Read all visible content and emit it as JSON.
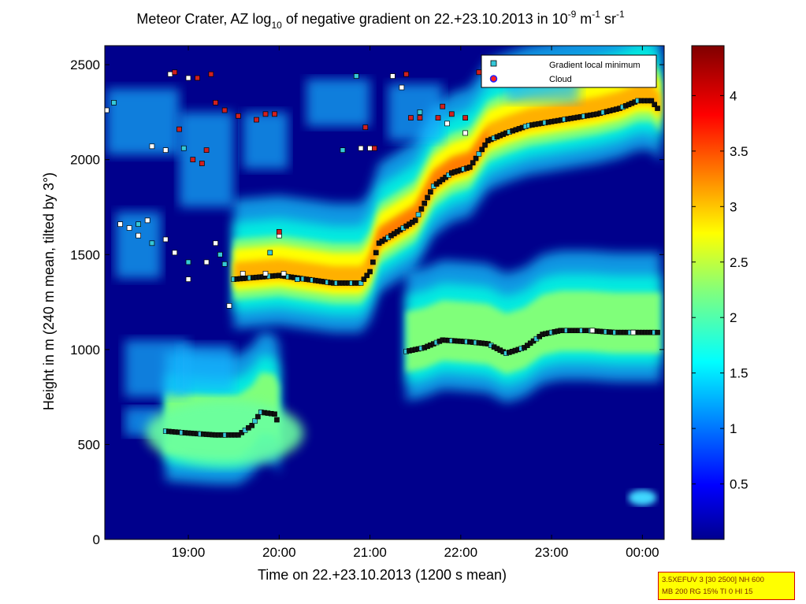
{
  "chart_data": {
    "type": "heatmap",
    "title": {
      "t1": "Meteor Crater, AZ log",
      "sub10": "10",
      "t2": " of negative gradient on 22.+23.10.2013 in 10",
      "supneg9": "-9",
      "t3": " m",
      "supneg1a": "-1",
      "t4": " sr",
      "supneg1b": "-1"
    },
    "xlabel": "Time on 22.+23.10.2013 (1200 s mean)",
    "ylabel": "Height in m (240 m mean, tilted by 3°)",
    "x_unit": "hours (24 = 00:00 on 23.10.2013)",
    "xlim": [
      18.08,
      24.24
    ],
    "ylim": [
      0,
      2600
    ],
    "xticks": [
      {
        "v": 19,
        "label": "19:00"
      },
      {
        "v": 20,
        "label": "20:00"
      },
      {
        "v": 21,
        "label": "21:00"
      },
      {
        "v": 22,
        "label": "22:00"
      },
      {
        "v": 23,
        "label": "23:00"
      },
      {
        "v": 24,
        "label": "00:00"
      }
    ],
    "yticks": [
      {
        "v": 0,
        "label": "0"
      },
      {
        "v": 500,
        "label": "500"
      },
      {
        "v": 1000,
        "label": "1000"
      },
      {
        "v": 1500,
        "label": "1500"
      },
      {
        "v": 2000,
        "label": "2000"
      },
      {
        "v": 2500,
        "label": "2500"
      }
    ],
    "colorbar": {
      "range": [
        0,
        4.45
      ],
      "colormap": "jet",
      "ticks": [
        {
          "v": 0.5,
          "label": "0.5"
        },
        {
          "v": 1,
          "label": "1"
        },
        {
          "v": 1.5,
          "label": "1.5"
        },
        {
          "v": 2,
          "label": "2"
        },
        {
          "v": 2.5,
          "label": "2.5"
        },
        {
          "v": 3,
          "label": "3"
        },
        {
          "v": 3.5,
          "label": "3.5"
        },
        {
          "v": 4,
          "label": "4"
        }
      ]
    },
    "legend": {
      "placement": "top-right",
      "entries": [
        {
          "label": "Gradient local minimum",
          "marker": "square",
          "color": "#35c8d8"
        },
        {
          "label": "Cloud",
          "marker": "circle",
          "color": "#ff2020",
          "edge": "#2020ff"
        }
      ]
    },
    "gradient_layers": [
      {
        "name": "upper layer",
        "points": [
          [
            19.5,
            1370
          ],
          [
            19.75,
            1380
          ],
          [
            20.0,
            1390
          ],
          [
            20.3,
            1370
          ],
          [
            20.6,
            1350
          ],
          [
            20.9,
            1350
          ],
          [
            21.0,
            1410
          ],
          [
            21.1,
            1560
          ],
          [
            21.3,
            1620
          ],
          [
            21.5,
            1680
          ],
          [
            21.7,
            1860
          ],
          [
            21.9,
            1930
          ],
          [
            22.1,
            1960
          ],
          [
            22.3,
            2100
          ],
          [
            22.5,
            2140
          ],
          [
            22.75,
            2180
          ],
          [
            23.0,
            2200
          ],
          [
            23.25,
            2220
          ],
          [
            23.5,
            2240
          ],
          [
            23.75,
            2270
          ],
          [
            23.95,
            2310
          ],
          [
            24.1,
            2310
          ],
          [
            24.2,
            2250
          ]
        ]
      },
      {
        "name": "middle layer",
        "points": [
          [
            21.4,
            990
          ],
          [
            21.6,
            1010
          ],
          [
            21.8,
            1050
          ],
          [
            22.1,
            1040
          ],
          [
            22.3,
            1030
          ],
          [
            22.5,
            980
          ],
          [
            22.7,
            1010
          ],
          [
            22.9,
            1080
          ],
          [
            23.1,
            1100
          ],
          [
            23.4,
            1100
          ],
          [
            23.7,
            1090
          ],
          [
            24.0,
            1090
          ],
          [
            24.2,
            1090
          ]
        ]
      },
      {
        "name": "lower layer",
        "points": [
          [
            18.75,
            570
          ],
          [
            19.0,
            560
          ],
          [
            19.3,
            550
          ],
          [
            19.55,
            550
          ],
          [
            19.7,
            600
          ],
          [
            19.8,
            670
          ],
          [
            19.95,
            660
          ],
          [
            20.0,
            600
          ]
        ]
      }
    ],
    "minimum_markers": [
      [
        18.1,
        2260
      ],
      [
        18.18,
        2300
      ],
      [
        18.25,
        1660
      ],
      [
        18.35,
        1640
      ],
      [
        18.45,
        1660
      ],
      [
        18.55,
        1680
      ],
      [
        18.45,
        1600
      ],
      [
        18.6,
        1560
      ],
      [
        18.75,
        1580
      ],
      [
        18.85,
        1510
      ],
      [
        19.0,
        1460
      ],
      [
        19.2,
        1460
      ],
      [
        19.3,
        1560
      ],
      [
        19.35,
        1500
      ],
      [
        19.45,
        1230
      ],
      [
        19.0,
        1370
      ],
      [
        19.4,
        1450
      ],
      [
        19.6,
        1400
      ],
      [
        19.85,
        1400
      ],
      [
        19.9,
        1510
      ],
      [
        20.0,
        1600
      ],
      [
        20.05,
        1400
      ],
      [
        20.2,
        1370
      ],
      [
        18.6,
        2070
      ],
      [
        18.75,
        2050
      ],
      [
        18.95,
        2060
      ],
      [
        18.8,
        2450
      ],
      [
        19.0,
        2430
      ],
      [
        20.7,
        2050
      ],
      [
        20.9,
        2060
      ],
      [
        21.0,
        2060
      ],
      [
        20.85,
        2440
      ],
      [
        21.25,
        2440
      ],
      [
        21.35,
        2380
      ],
      [
        21.55,
        2250
      ],
      [
        21.85,
        2190
      ],
      [
        22.05,
        2140
      ],
      [
        22.35,
        2470
      ],
      [
        23.45,
        1100
      ],
      [
        23.9,
        1090
      ]
    ],
    "cloud_markers": [
      [
        18.85,
        2460
      ],
      [
        19.1,
        2430
      ],
      [
        19.25,
        2450
      ],
      [
        19.3,
        2300
      ],
      [
        19.4,
        2260
      ],
      [
        19.55,
        2230
      ],
      [
        19.75,
        2210
      ],
      [
        19.85,
        2240
      ],
      [
        19.95,
        2240
      ],
      [
        18.9,
        2160
      ],
      [
        19.05,
        2000
      ],
      [
        19.15,
        1980
      ],
      [
        19.2,
        2050
      ],
      [
        20.0,
        1620
      ],
      [
        20.95,
        2170
      ],
      [
        21.05,
        2060
      ],
      [
        21.4,
        2450
      ],
      [
        21.45,
        2220
      ],
      [
        21.55,
        2220
      ],
      [
        21.75,
        2220
      ],
      [
        21.8,
        2280
      ],
      [
        21.9,
        2240
      ],
      [
        22.05,
        2220
      ],
      [
        22.2,
        2460
      ]
    ]
  },
  "info_box": {
    "line1": "3.5XEFUV 3 [30 2500] NH 600",
    "line2": "MB 200 RG 15% TI 0 HI 15"
  }
}
